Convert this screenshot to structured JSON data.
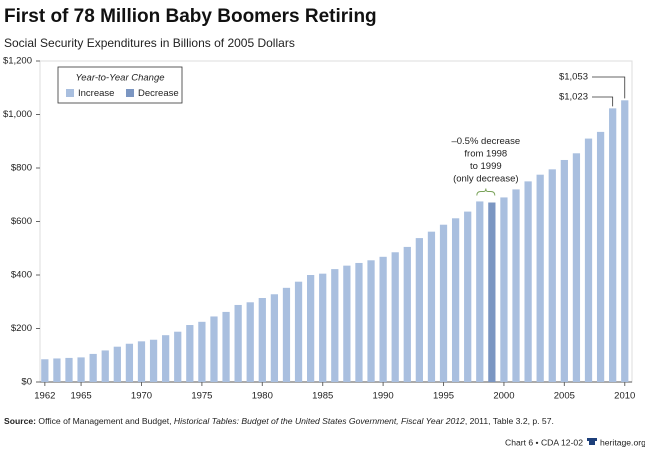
{
  "chart_data": {
    "type": "bar",
    "title": "First of 78 Million Baby Boomers Retiring",
    "subtitle": "Social Security Expenditures in Billions of 2005 Dollars",
    "legend_title": "Year-to-Year Change",
    "x": [
      1962,
      1963,
      1964,
      1965,
      1966,
      1967,
      1968,
      1969,
      1970,
      1971,
      1972,
      1973,
      1974,
      1975,
      1976,
      1977,
      1978,
      1979,
      1980,
      1981,
      1982,
      1983,
      1984,
      1985,
      1986,
      1987,
      1988,
      1989,
      1990,
      1991,
      1992,
      1993,
      1994,
      1995,
      1996,
      1997,
      1998,
      1999,
      2000,
      2001,
      2002,
      2003,
      2004,
      2005,
      2006,
      2007,
      2008,
      2009,
      2010
    ],
    "xlim": [
      1961.6,
      2010.6
    ],
    "xticks": [
      1962,
      1965,
      1970,
      1975,
      1980,
      1985,
      1990,
      1995,
      2000,
      2005,
      2010
    ],
    "ylim": [
      0,
      1200
    ],
    "yticks": [
      {
        "value": 0,
        "label": "$0"
      },
      {
        "value": 200,
        "label": "$200"
      },
      {
        "value": 400,
        "label": "$400"
      },
      {
        "value": 600,
        "label": "$600"
      },
      {
        "value": 800,
        "label": "$800"
      },
      {
        "value": 1000,
        "label": "$1,000"
      },
      {
        "value": 1200,
        "label": "$1,200"
      }
    ],
    "grid": false,
    "series": [
      {
        "name": "Increase",
        "color": "#a9bfdf",
        "values": [
          85,
          88,
          90,
          92,
          105,
          118,
          132,
          143,
          152,
          158,
          175,
          188,
          213,
          225,
          245,
          262,
          288,
          298,
          314,
          328,
          352,
          375,
          400,
          405,
          422,
          435,
          445,
          455,
          468,
          485,
          505,
          538,
          562,
          588,
          612,
          637,
          675,
          null,
          690,
          720,
          750,
          775,
          795,
          830,
          855,
          910,
          935,
          1023,
          1053
        ],
        "value_labels": [
          null,
          null,
          null,
          null,
          null,
          null,
          null,
          null,
          null,
          null,
          null,
          null,
          null,
          null,
          null,
          null,
          null,
          null,
          null,
          null,
          null,
          null,
          null,
          null,
          null,
          null,
          null,
          null,
          null,
          null,
          null,
          null,
          null,
          null,
          null,
          null,
          null,
          null,
          null,
          null,
          null,
          null,
          null,
          null,
          null,
          null,
          null,
          "$1,023",
          "$1,053"
        ]
      },
      {
        "name": "Decrease",
        "color": "#7b96c2",
        "values": [
          null,
          null,
          null,
          null,
          null,
          null,
          null,
          null,
          null,
          null,
          null,
          null,
          null,
          null,
          null,
          null,
          null,
          null,
          null,
          null,
          null,
          null,
          null,
          null,
          null,
          null,
          null,
          null,
          null,
          null,
          null,
          null,
          null,
          null,
          null,
          null,
          null,
          671,
          null,
          null,
          null,
          null,
          null,
          null,
          null,
          null,
          null,
          null,
          null
        ]
      }
    ],
    "annotation": {
      "lines": [
        "–0.5% decrease",
        "from 1998",
        "to 1999",
        "(only decrease)"
      ]
    },
    "source": {
      "label": "Source:",
      "text": "Office of Management and Budget, ",
      "italic": "Historical Tables: Budget of the United States Government, Fiscal Year 2012",
      "rest": ", 2011, Table 3.2, p. 57."
    },
    "footer": {
      "chart": "Chart 6 • CDA 12-02",
      "site": "heritage.org"
    }
  }
}
